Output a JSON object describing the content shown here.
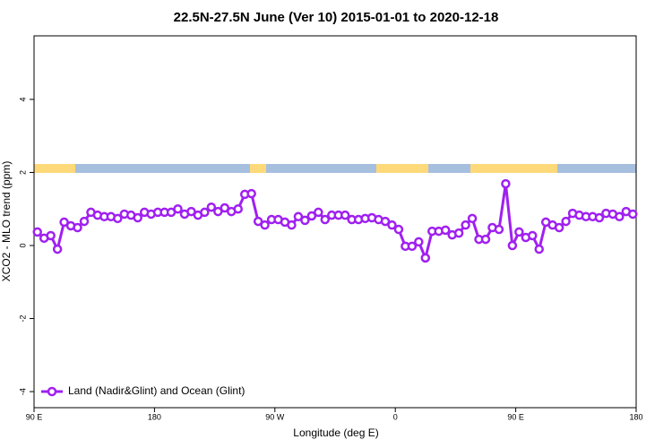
{
  "chart_data": {
    "type": "line",
    "title": "22.5N-27.5N June (Ver 10)   2015-01-01 to 2020-12-18",
    "x_label": "Longitude (deg E)",
    "y_label": "XCO2 - MLO trend (ppm)",
    "xlim": [
      90,
      540
    ],
    "ylim": [
      -4.44,
      5.74
    ],
    "xticks": [
      {
        "value": 90,
        "label": "90 E"
      },
      180,
      {
        "value": 270,
        "label": "90 W"
      },
      {
        "value": 360,
        "label": "0"
      },
      {
        "value": 450,
        "label": "90 E"
      },
      {
        "value": 540,
        "label": "180"
      }
    ],
    "yticks": [
      -4,
      -2,
      0,
      2,
      4
    ],
    "legend": "bottom-left",
    "x": [
      92.5,
      97.5,
      102.5,
      107.5,
      112.5,
      117.5,
      122.5,
      127.5,
      132.5,
      137.5,
      142.5,
      147.5,
      152.5,
      157.5,
      162.5,
      167.5,
      172.5,
      177.5,
      182.5,
      187.5,
      192.5,
      197.5,
      202.5,
      207.5,
      212.5,
      217.5,
      222.5,
      227.5,
      232.5,
      237.5,
      242.5,
      247.5,
      252.5,
      257.5,
      262.5,
      267.5,
      272.5,
      277.5,
      282.5,
      287.5,
      292.5,
      297.5,
      302.5,
      307.5,
      312.5,
      317.5,
      322.5,
      327.5,
      332.5,
      337.5,
      342.5,
      347.5,
      352.5,
      357.5,
      362.5,
      367.5,
      372.5,
      377.5,
      382.5,
      387.5,
      392.5,
      397.5,
      402.5,
      407.5,
      412.5,
      417.5,
      422.5,
      427.5,
      432.5,
      437.5,
      442.5,
      447.5,
      452.5,
      457.5,
      462.5,
      467.5,
      472.5,
      477.5,
      482.5,
      487.5,
      492.5,
      497.5,
      502.5,
      507.5,
      512.5,
      517.5,
      522.5,
      527.5,
      532.5,
      537.5
    ],
    "series": [
      {
        "name": "Land (Nadir&Glint) and Ocean (Glint)",
        "color": "#a020f0",
        "values": [
          0.37,
          0.2,
          0.27,
          -0.1,
          0.64,
          0.54,
          0.49,
          0.66,
          0.91,
          0.83,
          0.79,
          0.79,
          0.74,
          0.86,
          0.83,
          0.76,
          0.91,
          0.86,
          0.91,
          0.91,
          0.91,
          1.0,
          0.86,
          0.93,
          0.83,
          0.91,
          1.05,
          0.93,
          1.03,
          0.93,
          1.0,
          1.4,
          1.42,
          0.66,
          0.56,
          0.71,
          0.71,
          0.64,
          0.56,
          0.79,
          0.69,
          0.81,
          0.91,
          0.71,
          0.83,
          0.83,
          0.83,
          0.71,
          0.71,
          0.74,
          0.76,
          0.71,
          0.66,
          0.56,
          0.44,
          -0.02,
          -0.02,
          0.1,
          -0.34,
          0.39,
          0.39,
          0.42,
          0.29,
          0.34,
          0.56,
          0.74,
          0.17,
          0.17,
          0.49,
          0.44,
          1.69,
          0.0,
          0.37,
          0.22,
          0.27,
          -0.1,
          0.64,
          0.56,
          0.49,
          0.66,
          0.88,
          0.83,
          0.79,
          0.79,
          0.76,
          0.88,
          0.86,
          0.79,
          0.93,
          0.86
        ]
      }
    ]
  }
}
